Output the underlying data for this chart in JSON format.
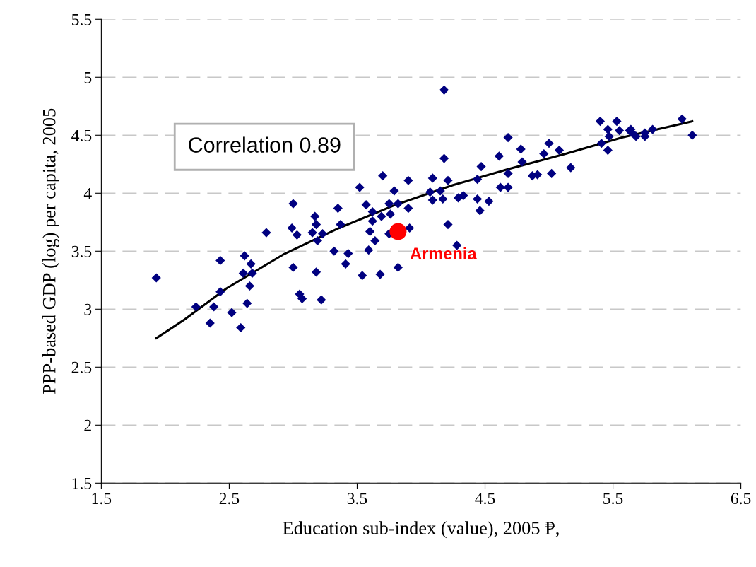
{
  "chart_data": {
    "type": "scatter",
    "xlabel": "Education sub-index (value), 2005 ₱,",
    "ylabel": "PPP-based GDP (log) per capita, 2005",
    "xlim": [
      1.5,
      6.5
    ],
    "xticks": [
      1.5,
      2.5,
      3.5,
      4.5,
      5.5,
      6.5
    ],
    "ylim": [
      1.5,
      5.5
    ],
    "yticks": [
      1.5,
      2,
      2.5,
      3,
      3.5,
      4,
      4.5,
      5,
      5.5
    ],
    "grid": "y",
    "legend": false,
    "annotations": [
      "Correlation 0.89"
    ],
    "series": [
      {
        "type": "scatter",
        "marker": "diamond",
        "color": "#000080",
        "x": [
          1.93,
          2.24,
          2.35,
          2.38,
          2.43,
          2.43,
          2.52,
          2.59,
          2.61,
          2.62,
          2.64,
          2.67,
          2.68,
          2.66,
          2.79,
          3.0,
          2.99,
          3.03,
          3.0,
          3.05,
          3.07,
          3.17,
          3.18,
          3.15,
          3.23,
          3.19,
          3.18,
          3.22,
          3.35,
          3.37,
          3.32,
          3.43,
          3.41,
          3.52,
          3.57,
          3.62,
          3.7,
          3.79,
          3.75,
          3.82,
          3.9,
          3.9,
          3.69,
          3.76,
          3.6,
          3.62,
          3.64,
          3.59,
          3.54,
          3.68,
          3.82,
          3.75,
          3.91,
          4.09,
          4.07,
          4.15,
          4.17,
          4.09,
          4.21,
          4.21,
          4.28,
          4.18,
          4.18,
          4.29,
          4.33,
          4.44,
          4.46,
          4.53,
          4.44,
          4.47,
          4.62,
          4.68,
          4.68,
          4.61,
          4.68,
          4.78,
          4.79,
          4.87,
          4.91,
          4.96,
          5.0,
          5.08,
          5.02,
          5.17,
          5.4,
          5.41,
          5.46,
          5.47,
          5.46,
          5.53,
          5.55,
          5.63,
          5.64,
          5.65,
          5.68,
          5.75,
          5.75,
          5.81,
          6.04,
          6.12
        ],
        "values": [
          3.27,
          3.02,
          2.88,
          3.02,
          3.15,
          3.42,
          2.97,
          2.84,
          3.31,
          3.46,
          3.05,
          3.39,
          3.31,
          3.2,
          3.66,
          3.91,
          3.7,
          3.64,
          3.36,
          3.13,
          3.09,
          3.8,
          3.73,
          3.66,
          3.65,
          3.59,
          3.32,
          3.08,
          3.87,
          3.73,
          3.5,
          3.48,
          3.39,
          4.05,
          3.9,
          3.84,
          4.15,
          4.02,
          3.91,
          3.91,
          4.11,
          3.87,
          3.8,
          3.82,
          3.67,
          3.76,
          3.59,
          3.51,
          3.29,
          3.3,
          3.36,
          3.65,
          3.7,
          4.13,
          4.01,
          4.02,
          3.95,
          3.94,
          4.11,
          3.73,
          3.55,
          4.3,
          4.89,
          3.96,
          3.98,
          3.95,
          3.85,
          3.93,
          4.12,
          4.23,
          4.05,
          4.05,
          4.17,
          4.32,
          4.48,
          4.38,
          4.27,
          4.15,
          4.16,
          4.34,
          4.43,
          4.37,
          4.17,
          4.22,
          4.62,
          4.43,
          4.55,
          4.49,
          4.37,
          4.62,
          4.54,
          4.54,
          4.55,
          4.52,
          4.49,
          4.52,
          4.49,
          4.55,
          4.64,
          4.5
        ]
      },
      {
        "type": "line",
        "marker": "none",
        "color": "#000000",
        "x": [
          1.93,
          2.15,
          2.48,
          2.92,
          3.36,
          3.8,
          4.25,
          4.69,
          5.13,
          5.57,
          6.12
        ],
        "values": [
          2.75,
          2.91,
          3.18,
          3.47,
          3.7,
          3.9,
          4.07,
          4.21,
          4.34,
          4.48,
          4.62
        ]
      },
      {
        "type": "scatter",
        "name": "Armenia",
        "marker": "circle",
        "color": "#ff0000",
        "x": [
          3.82
        ],
        "values": [
          3.67
        ]
      }
    ]
  }
}
